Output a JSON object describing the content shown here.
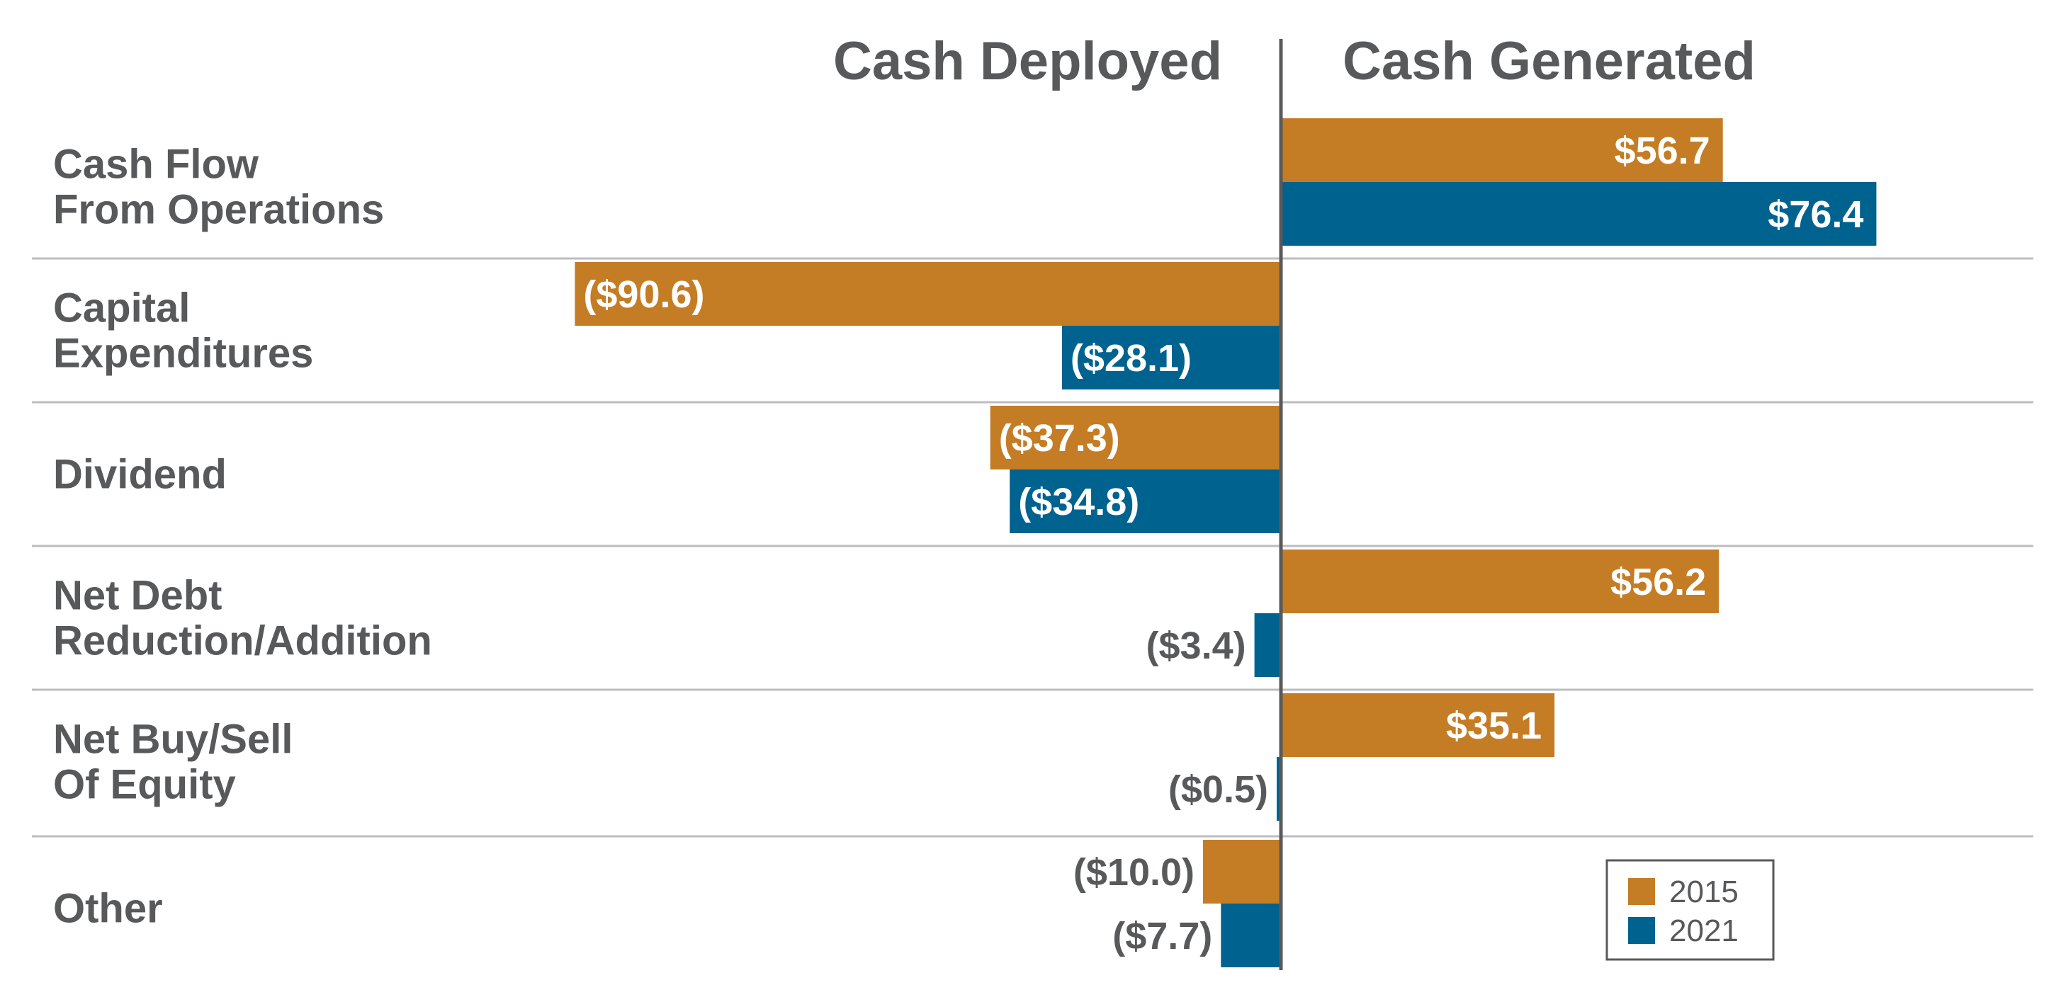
{
  "chart_data": {
    "type": "bar",
    "orientation": "horizontal",
    "header_left": "Cash Deployed",
    "header_right": "Cash Generated",
    "categories": [
      [
        "Cash Flow",
        "From Operations"
      ],
      [
        "Capital",
        "Expenditures"
      ],
      [
        "Dividend"
      ],
      [
        "Net Debt",
        "Reduction/Addition"
      ],
      [
        "Net Buy/Sell",
        "Of Equity"
      ],
      [
        "Other"
      ]
    ],
    "series": [
      {
        "name": "2015",
        "color": "#c47d24",
        "values": [
          56.7,
          -90.6,
          -37.3,
          56.2,
          35.1,
          -10.0
        ],
        "labels": [
          "$56.7",
          "($90.6)",
          "($37.3)",
          "$56.2",
          "$35.1",
          "($10.0)"
        ]
      },
      {
        "name": "2021",
        "color": "#00628f",
        "values": [
          76.4,
          -28.1,
          -34.8,
          -3.4,
          -0.5,
          -7.7
        ],
        "labels": [
          "$76.4",
          "($28.1)",
          "($34.8)",
          "($3.4)",
          "($0.5)",
          "($7.7)"
        ]
      }
    ],
    "legend": {
      "position": "bottom-right",
      "entries": [
        "2015",
        "2021"
      ]
    },
    "xlim": [
      -100,
      90
    ],
    "axis_color": "#58595b",
    "gridline_color": "#bcbdc0",
    "label_inside_color": "#ffffff",
    "label_outside_color": "#58595b"
  }
}
